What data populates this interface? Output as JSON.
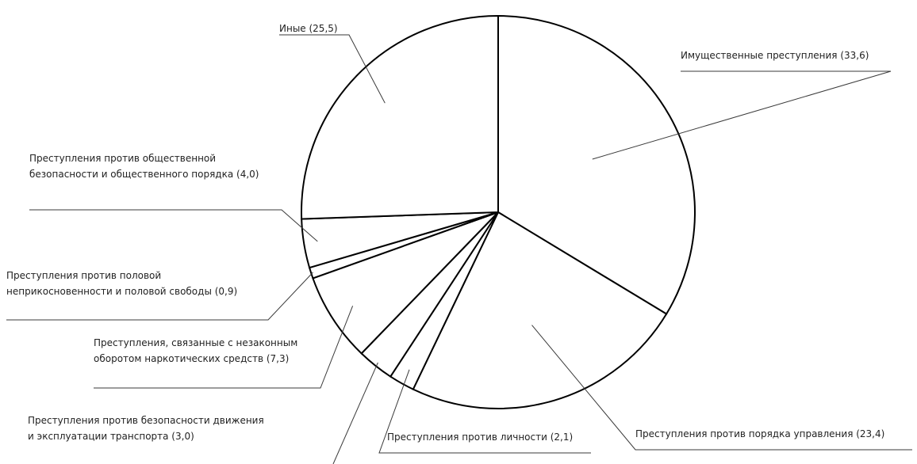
{
  "chart_data": {
    "type": "pie",
    "title": "",
    "slices": [
      {
        "label": "Имущественные преступления",
        "value": 33.6,
        "text": [
          "Имущественные преступления  (33,6)"
        ]
      },
      {
        "label": "Преступления против порядка управления",
        "value": 23.4,
        "text": [
          "Преступления против порядка управления  (23,4)"
        ]
      },
      {
        "label": "Преступления против личности",
        "value": 2.1,
        "text": [
          "Преступления против личности (2,1)"
        ]
      },
      {
        "label": "Преступления против безопасности движения и эксплуатации транспорта",
        "value": 3.0,
        "text": [
          "Преступления против безопасности движения",
          "и эксплуатации транспорта (3,0)"
        ]
      },
      {
        "label": "Преступления, связанные с незаконным оборотом наркотических средств",
        "value": 7.3,
        "text": [
          "Преступления, связанные с незаконным",
          "оборотом наркотических средств (7,3)"
        ]
      },
      {
        "label": "Преступления против половой неприкосновенности и половой свободы",
        "value": 0.9,
        "text": [
          "Преступления против половой",
          "неприкосновенности и половой свободы (0,9)"
        ]
      },
      {
        "label": "Преступления против общественной безопасности и общественного порядка",
        "value": 4.0,
        "text": [
          "Преступления против общественной",
          "безопасности и общественного порядка (4,0)"
        ]
      },
      {
        "label": "Иные",
        "value": 25.5,
        "text": [
          "Иные (25,5)"
        ]
      }
    ],
    "start_angle_deg": 0,
    "direction": "clockwise",
    "legend": "none",
    "fill": "#ffffff",
    "stroke": "#000000"
  }
}
